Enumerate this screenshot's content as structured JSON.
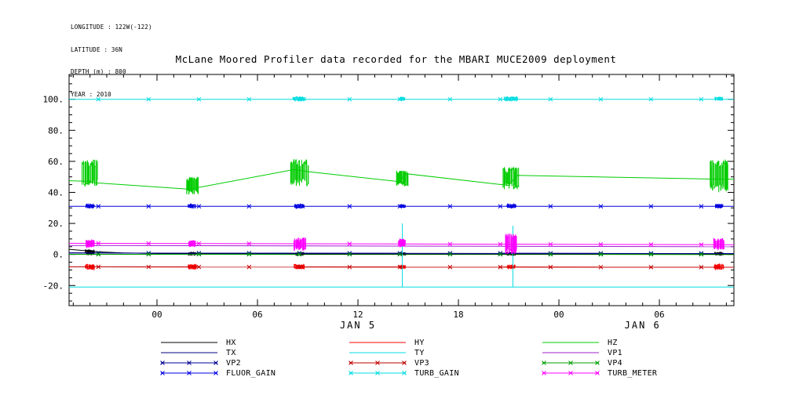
{
  "metadata": {
    "longitude": "LONGITUDE : 122W(-122)",
    "latitude": "LATITUDE : 36N",
    "depth": "DEPTH (m) : 800",
    "year": "YEAR : 2010"
  },
  "chart_data": {
    "type": "line",
    "title": "McLane Moored Profiler data recorded for the MBARI MUCE2009 deployment",
    "xlabel": "",
    "ylabel": "",
    "legend_position": "bottom",
    "legend_columns": 3,
    "axis": {
      "xlim": [
        -5.25,
        34.45
      ],
      "ylim": [
        -33,
        116
      ],
      "x_unit": "hours relative to Jan 5 00:00",
      "x_major_ticks": [
        {
          "h": 0,
          "label": "00"
        },
        {
          "h": 6,
          "label": "06"
        },
        {
          "h": 12,
          "label": "12"
        },
        {
          "h": 18,
          "label": "18"
        },
        {
          "h": 24,
          "label": "00"
        },
        {
          "h": 30,
          "label": "06"
        }
      ],
      "x_minor_tick_every_hours": 1,
      "y_major_ticks": [
        {
          "v": 100,
          "label": "100."
        },
        {
          "v": 80,
          "label": "80."
        },
        {
          "v": 60,
          "label": "60."
        },
        {
          "v": 40,
          "label": "40."
        },
        {
          "v": 20,
          "label": "20."
        },
        {
          "v": 0,
          "label": "0."
        },
        {
          "v": -20,
          "label": "-20."
        }
      ],
      "y_minor_tick_every": 5,
      "day_labels": [
        {
          "h": 12,
          "label": "JAN  5"
        },
        {
          "h": 29,
          "label": "JAN  6"
        }
      ],
      "grid": false
    },
    "marker_start_hour": -3.5,
    "marker_interval_hours": 3,
    "profile_event_hours": [
      -4,
      2.1,
      8.5,
      14.65,
      21.15,
      33.55
    ],
    "series": [
      {
        "name": "HX",
        "color": "#000000",
        "marker": false,
        "points": [
          [
            -5.25,
            3.3
          ],
          [
            -4.5,
            2.6
          ],
          [
            -3.5,
            1.7
          ],
          [
            -2,
            1.0
          ],
          [
            0,
            0.6
          ],
          [
            2.1,
            0.4
          ],
          [
            8.5,
            0.35
          ],
          [
            14.65,
            0.3
          ],
          [
            21.15,
            0.3
          ],
          [
            34.45,
            0.25
          ]
        ],
        "bursts": [
          {
            "h": -4,
            "lo": -0.3,
            "hi": 3.0,
            "w": 0.5
          },
          {
            "h": 2.1,
            "lo": -0.5,
            "hi": 1.4,
            "w": 0.4
          },
          {
            "h": 8.5,
            "lo": -0.5,
            "hi": 1.4,
            "w": 0.5
          },
          {
            "h": 14.65,
            "lo": -0.4,
            "hi": 1.2,
            "w": 0.4
          },
          {
            "h": 21.15,
            "lo": -0.5,
            "hi": 1.4,
            "w": 0.5
          },
          {
            "h": 33.55,
            "lo": -0.5,
            "hi": 1.4,
            "w": 0.5
          }
        ]
      },
      {
        "name": "HY",
        "color": "#ff0000",
        "marker": false,
        "points": [
          [
            -5.25,
            -8.0
          ],
          [
            34.45,
            -8.2
          ]
        ],
        "bursts": [
          {
            "h": -4,
            "lo": -9.6,
            "hi": -6.4,
            "w": 0.5
          },
          {
            "h": 2.1,
            "lo": -9.4,
            "hi": -6.6,
            "w": 0.45
          },
          {
            "h": 8.5,
            "lo": -9.6,
            "hi": -6.4,
            "w": 0.55
          },
          {
            "h": 14.65,
            "lo": -9.0,
            "hi": -7.0,
            "w": 0.35
          },
          {
            "h": 21.15,
            "lo": -9.2,
            "hi": -6.8,
            "w": 0.45
          },
          {
            "h": 33.55,
            "lo": -9.7,
            "hi": -6.2,
            "w": 0.55
          }
        ]
      },
      {
        "name": "HZ",
        "color": "#00cc00",
        "marker": false,
        "points": [
          [
            -5.25,
            47.5
          ],
          [
            -4.2,
            47.2
          ],
          [
            -3.7,
            46.2
          ],
          [
            2.0,
            42.0
          ],
          [
            2.4,
            43.0
          ],
          [
            8.2,
            54.8
          ],
          [
            8.9,
            53.5
          ],
          [
            14.4,
            47.0
          ],
          [
            14.9,
            52.0
          ],
          [
            21.0,
            44.5
          ],
          [
            21.5,
            51.0
          ],
          [
            33.4,
            48.5
          ],
          [
            34.45,
            48.5
          ]
        ],
        "bursts": [
          {
            "h": -4,
            "lo": 44,
            "hi": 61,
            "w": 0.9
          },
          {
            "h": 2.1,
            "lo": 38.5,
            "hi": 50,
            "w": 0.7
          },
          {
            "h": 8.5,
            "lo": 44,
            "hi": 61.5,
            "w": 1.1
          },
          {
            "h": 14.65,
            "lo": 44,
            "hi": 54,
            "w": 0.7
          },
          {
            "h": 21.15,
            "lo": 42,
            "hi": 56.5,
            "w": 0.9
          },
          {
            "h": 33.55,
            "lo": 40,
            "hi": 61,
            "w": 1.1
          }
        ]
      },
      {
        "name": "TX",
        "color": "#000080",
        "marker": false,
        "points": [
          [
            -5.25,
            1.1
          ],
          [
            0,
            0.8
          ],
          [
            34.45,
            0.6
          ]
        ]
      },
      {
        "name": "TY",
        "color": "#00dde0",
        "marker": false,
        "points": [
          [
            -5.25,
            -21.0
          ],
          [
            34.45,
            -21.0
          ]
        ],
        "spikes": [
          {
            "h": 14.65,
            "base": -21,
            "top": 20
          },
          {
            "h": 21.25,
            "base": -21,
            "top": 18.5
          }
        ]
      },
      {
        "name": "VP1",
        "color": "#a020d0",
        "marker": false,
        "points": [
          [
            -5.25,
            5.8
          ],
          [
            34.45,
            5.0
          ]
        ]
      },
      {
        "name": "VP2",
        "color": "#000090",
        "marker": true,
        "points": [
          [
            -5.25,
            0.9
          ],
          [
            34.45,
            0.7
          ]
        ]
      },
      {
        "name": "VP3",
        "color": "#c00000",
        "marker": true,
        "points": [
          [
            -5.25,
            -8.0
          ],
          [
            34.45,
            -8.2
          ]
        ]
      },
      {
        "name": "VP4",
        "color": "#00a000",
        "marker": true,
        "points": [
          [
            -5.25,
            0.1
          ],
          [
            34.45,
            0.0
          ]
        ]
      },
      {
        "name": "FLUOR_GAIN",
        "color": "#0000e0",
        "marker": true,
        "points": [
          [
            -5.25,
            31.0
          ],
          [
            34.45,
            31.0
          ]
        ],
        "bursts": [
          {
            "h": -4,
            "lo": 30.0,
            "hi": 32.4,
            "w": 0.5
          },
          {
            "h": 2.1,
            "lo": 30.0,
            "hi": 32.4,
            "w": 0.45
          },
          {
            "h": 8.5,
            "lo": 29.8,
            "hi": 32.6,
            "w": 0.55
          },
          {
            "h": 14.65,
            "lo": 30.2,
            "hi": 32.0,
            "w": 0.3
          },
          {
            "h": 21.15,
            "lo": 30.0,
            "hi": 32.4,
            "w": 0.5
          },
          {
            "h": 33.55,
            "lo": 30.0,
            "hi": 32.4,
            "w": 0.45
          }
        ]
      },
      {
        "name": "TURB_GAIN",
        "color": "#00dde0",
        "marker": true,
        "points": [
          [
            -5.25,
            100.0
          ],
          [
            34.45,
            100.0
          ]
        ],
        "bursts": [
          {
            "h": 8.5,
            "lo": 99.0,
            "hi": 101.6,
            "w": 0.7
          },
          {
            "h": 14.65,
            "lo": 99.3,
            "hi": 101.2,
            "w": 0.3
          },
          {
            "h": 21.15,
            "lo": 99.0,
            "hi": 101.6,
            "w": 0.8
          },
          {
            "h": 33.55,
            "lo": 99.3,
            "hi": 101.3,
            "w": 0.4
          }
        ]
      },
      {
        "name": "TURB_METER",
        "color": "#ff00ff",
        "marker": true,
        "points": [
          [
            -5.25,
            7.2
          ],
          [
            34.45,
            6.3
          ]
        ],
        "bursts": [
          {
            "h": -4,
            "lo": 4.5,
            "hi": 9.5,
            "w": 0.5
          },
          {
            "h": 2.1,
            "lo": 5.0,
            "hi": 9.0,
            "w": 0.4
          },
          {
            "h": 8.5,
            "lo": 2.5,
            "hi": 11.0,
            "w": 0.7
          },
          {
            "h": 14.65,
            "lo": 5.0,
            "hi": 10.0,
            "w": 0.4
          },
          {
            "h": 21.15,
            "lo": 0.5,
            "hi": 13.5,
            "w": 0.7
          },
          {
            "h": 33.55,
            "lo": 3.0,
            "hi": 10.5,
            "w": 0.6
          }
        ]
      }
    ]
  }
}
